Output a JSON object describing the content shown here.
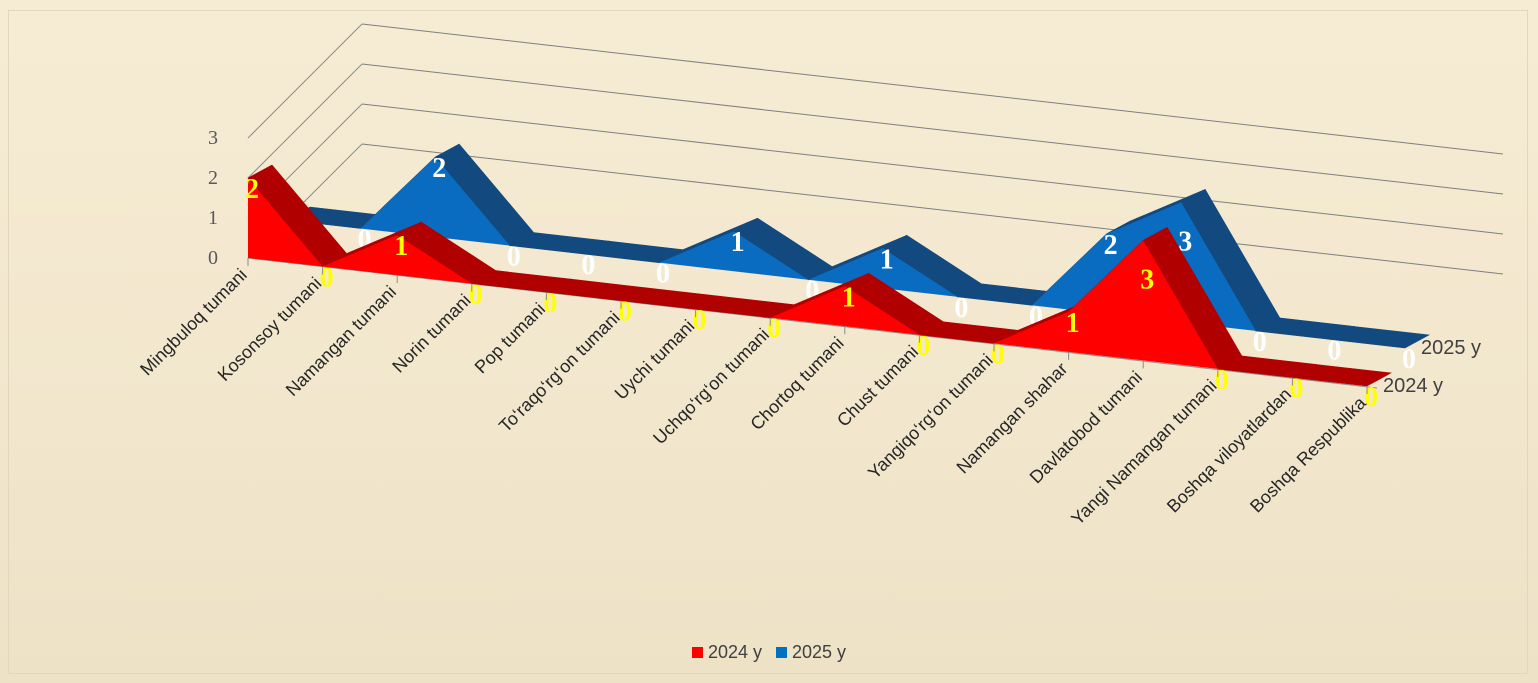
{
  "chart_data": {
    "type": "area",
    "view": "3d",
    "categories": [
      "Mingbuloq tumani",
      "Kosonsoy tumani",
      "Namangan tumani",
      "Norin tumani",
      "Pop tumani",
      "To‘raqo‘rg‘on tumani",
      "Uychi tumani",
      "Uchqo‘rg‘on tumani",
      "Chortoq tumani",
      "Chust tumani",
      "Yangiqo‘rg‘on tumani",
      "Namangan shahar",
      "Davlatobod tumani",
      "Yangi Namangan tumani",
      "Boshqa viloyatlardan",
      "Boshqa Respublika"
    ],
    "series": [
      {
        "name": "2024 y",
        "color": "#ff0000",
        "values": [
          2,
          0,
          1,
          0,
          0,
          0,
          0,
          0,
          1,
          0,
          0,
          1,
          3,
          0,
          0,
          0
        ]
      },
      {
        "name": "2025 y",
        "color": "#0070c0",
        "values": [
          0,
          0,
          2,
          0,
          0,
          0,
          1,
          0,
          1,
          0,
          0,
          2,
          3,
          0,
          0,
          0
        ]
      }
    ],
    "y_ticks": [
      "0",
      "1",
      "2",
      "3"
    ],
    "ylim": [
      0,
      3
    ],
    "legend_position": "bottom",
    "gridlines": true,
    "data_label_colors": {
      "2024 y": "#ffff00",
      "2025 y": "#ffffff"
    },
    "title": "",
    "xlabel": "",
    "ylabel": ""
  }
}
